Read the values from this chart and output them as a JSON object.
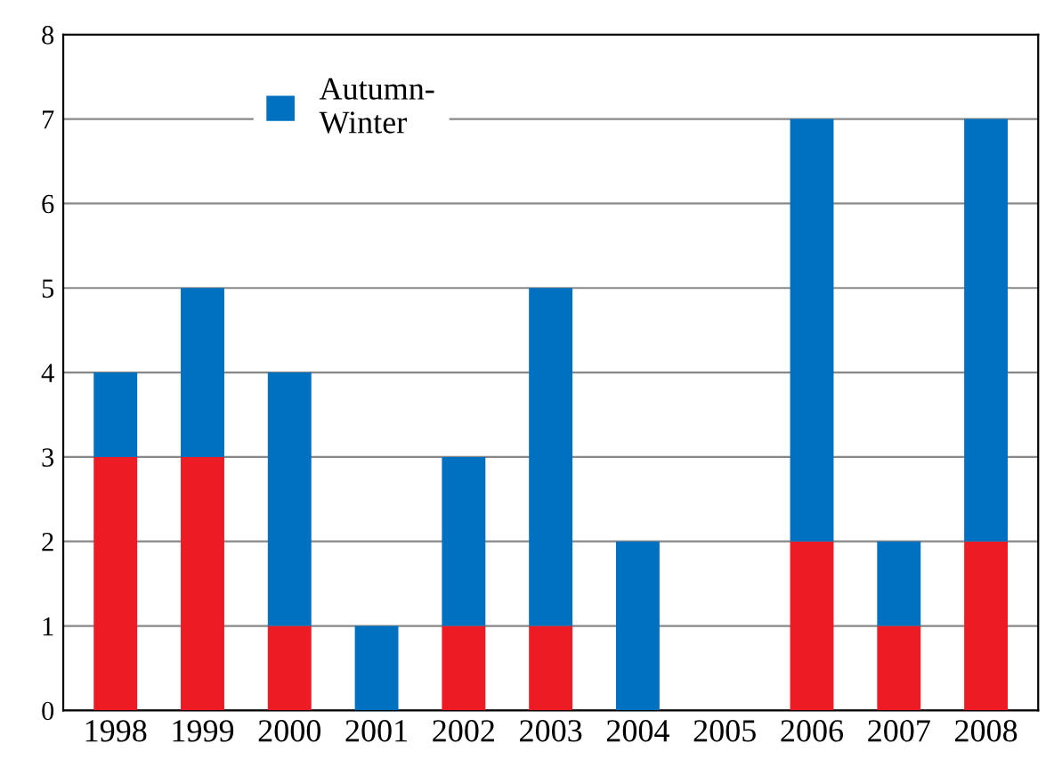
{
  "chart_data": {
    "type": "bar",
    "stacked": true,
    "categories": [
      "1998",
      "1999",
      "2000",
      "2001",
      "2002",
      "2003",
      "2004",
      "2005",
      "2006",
      "2007",
      "2008"
    ],
    "series": [
      {
        "color": "#ed1c24",
        "values": [
          3,
          3,
          1,
          0,
          1,
          1,
          0,
          0,
          2,
          1,
          2
        ]
      },
      {
        "name": "Autumn-Winter",
        "color": "#0070c0",
        "values": [
          1,
          2,
          3,
          1,
          2,
          4,
          2,
          0,
          5,
          1,
          5
        ]
      }
    ],
    "ylim": [
      0,
      8
    ],
    "yticks": [
      0,
      1,
      2,
      3,
      4,
      5,
      6,
      7,
      8
    ],
    "grid": "y",
    "legend": "top left"
  }
}
